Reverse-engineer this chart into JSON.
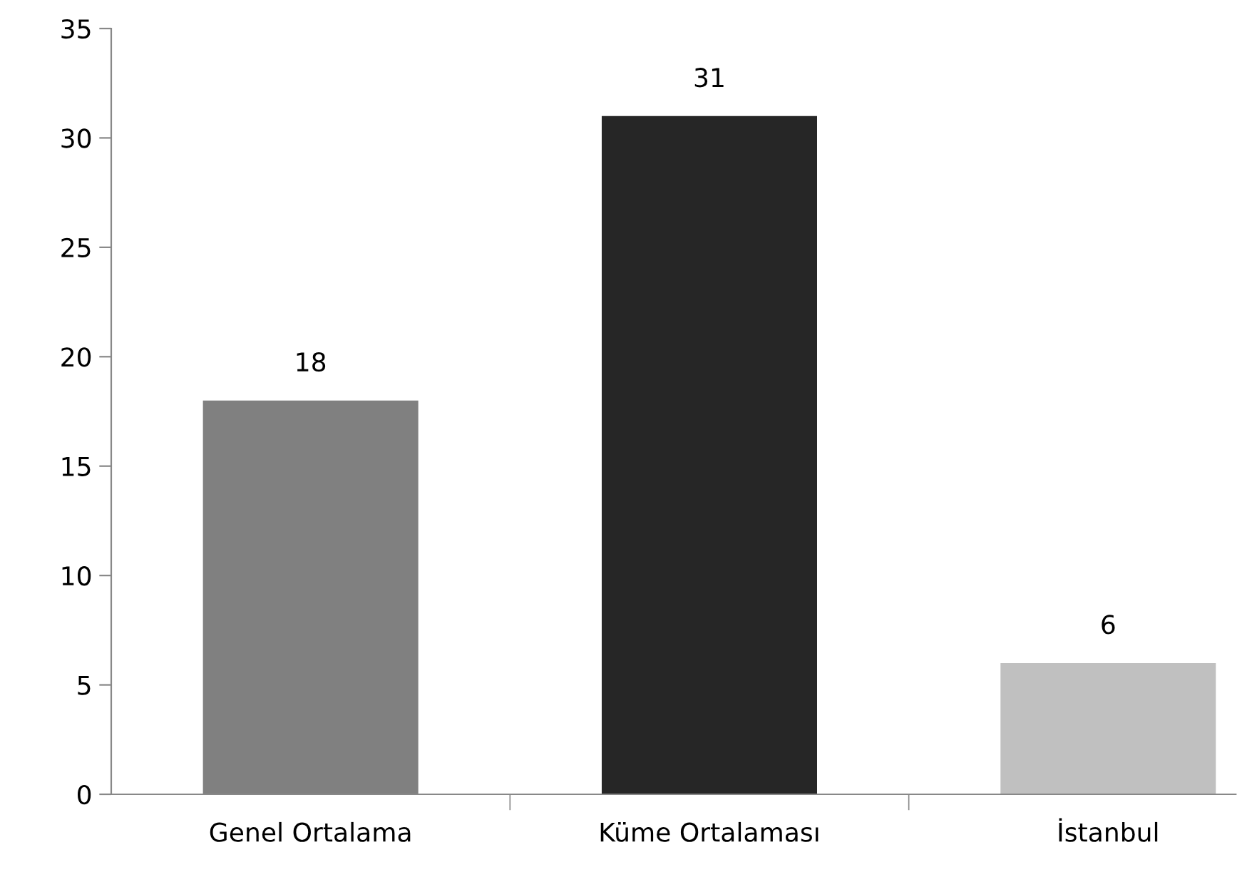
{
  "chart_data": {
    "type": "bar",
    "categories": [
      "Genel Ortalama",
      "Küme Ortalaması",
      "İstanbul"
    ],
    "values": [
      18,
      31,
      6
    ],
    "colors": [
      "#808080",
      "#262626",
      "#c0c0c0"
    ],
    "ylim": [
      0,
      35
    ],
    "yticks": [
      0,
      5,
      10,
      15,
      20,
      25,
      30,
      35
    ],
    "grid": false,
    "legend": false,
    "data_labels": true
  }
}
